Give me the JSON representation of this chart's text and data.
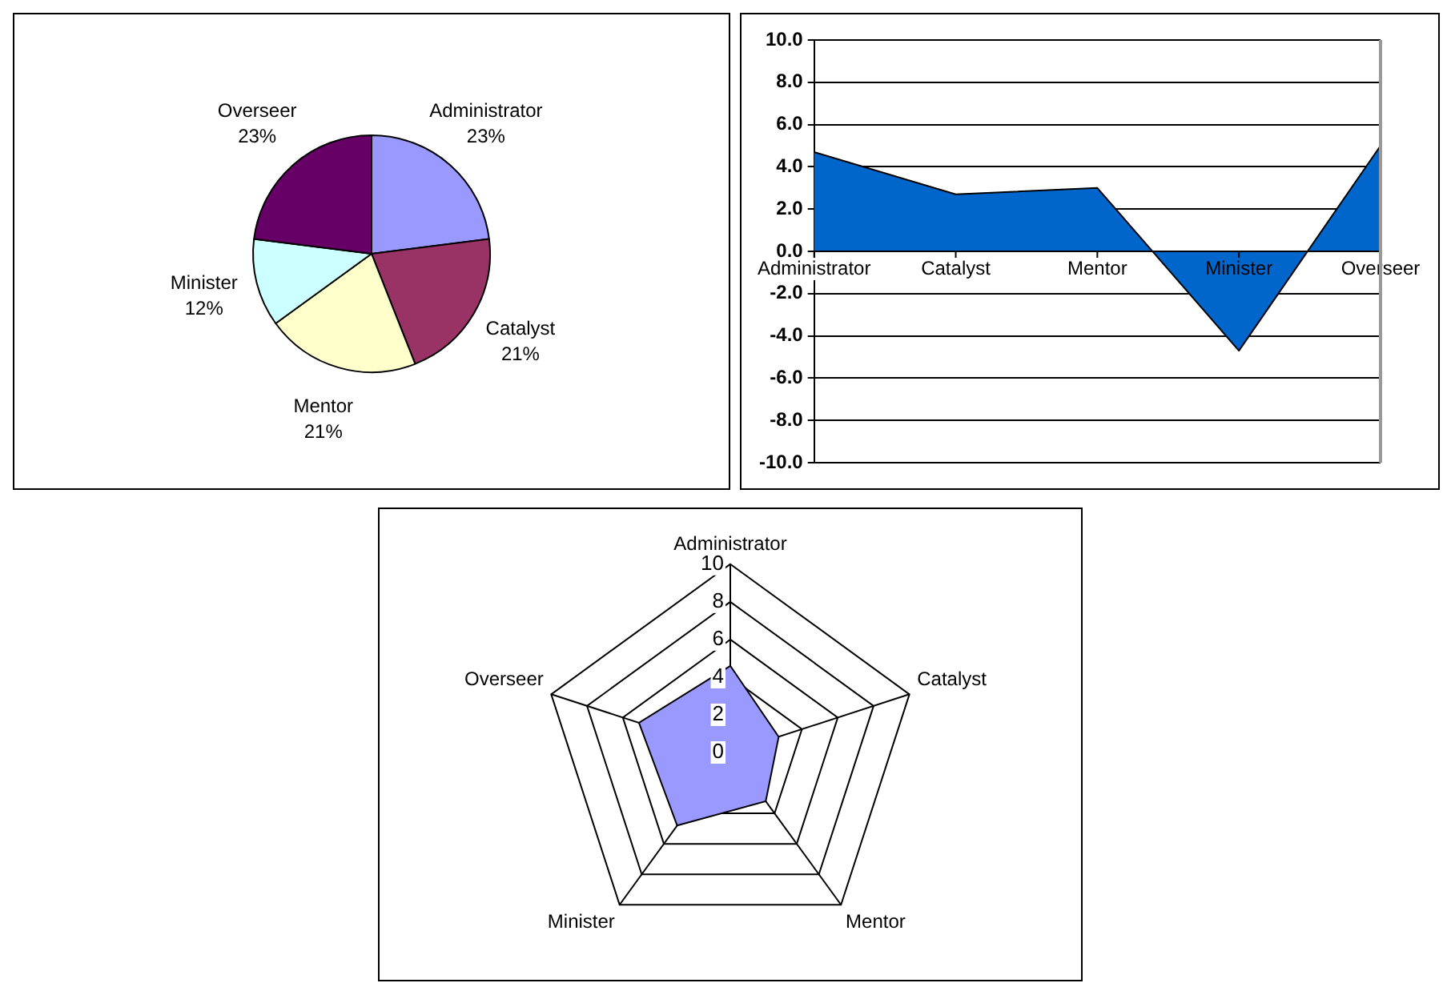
{
  "chart_data": [
    {
      "type": "pie",
      "categories": [
        "Administrator",
        "Catalyst",
        "Mentor",
        "Minister",
        "Overseer"
      ],
      "values": [
        23,
        21,
        21,
        12,
        23
      ],
      "value_labels": [
        "23%",
        "21%",
        "21%",
        "12%",
        "23%"
      ],
      "colors": [
        "#9999ff",
        "#993366",
        "#ffffcc",
        "#ccffff",
        "#660066"
      ],
      "legend": false
    },
    {
      "type": "area",
      "categories": [
        "Administrator",
        "Catalyst",
        "Mentor",
        "Minister",
        "Overseer"
      ],
      "values": [
        4.7,
        2.7,
        3.0,
        -4.7,
        5.0
      ],
      "color": "#0066cc",
      "ylim": [
        -10,
        10
      ],
      "yticks": [
        {
          "value": -10,
          "label": "-10.0"
        },
        {
          "value": -8,
          "label": "-8.0"
        },
        {
          "value": -6,
          "label": "-6.0"
        },
        {
          "value": -4,
          "label": "-4.0"
        },
        {
          "value": -2,
          "label": "-2.0"
        },
        {
          "value": 0,
          "label": "0.0"
        },
        {
          "value": 2,
          "label": "2.0"
        },
        {
          "value": 4,
          "label": "4.0"
        },
        {
          "value": 6,
          "label": "6.0"
        },
        {
          "value": 8,
          "label": "8.0"
        },
        {
          "value": 10,
          "label": "10.0"
        }
      ],
      "grid": "y",
      "legend": false
    },
    {
      "type": "radar",
      "categories": [
        "Administrator",
        "Catalyst",
        "Mentor",
        "Minister",
        "Overseer"
      ],
      "series": [
        {
          "color": "#9999ff",
          "values": [
            4.6,
            2.7,
            3.2,
            4.8,
            5.1
          ]
        }
      ],
      "ylim": [
        0,
        10
      ],
      "yticks": [
        0,
        2,
        4,
        6,
        8,
        10
      ],
      "grid": true,
      "legend": false
    }
  ]
}
